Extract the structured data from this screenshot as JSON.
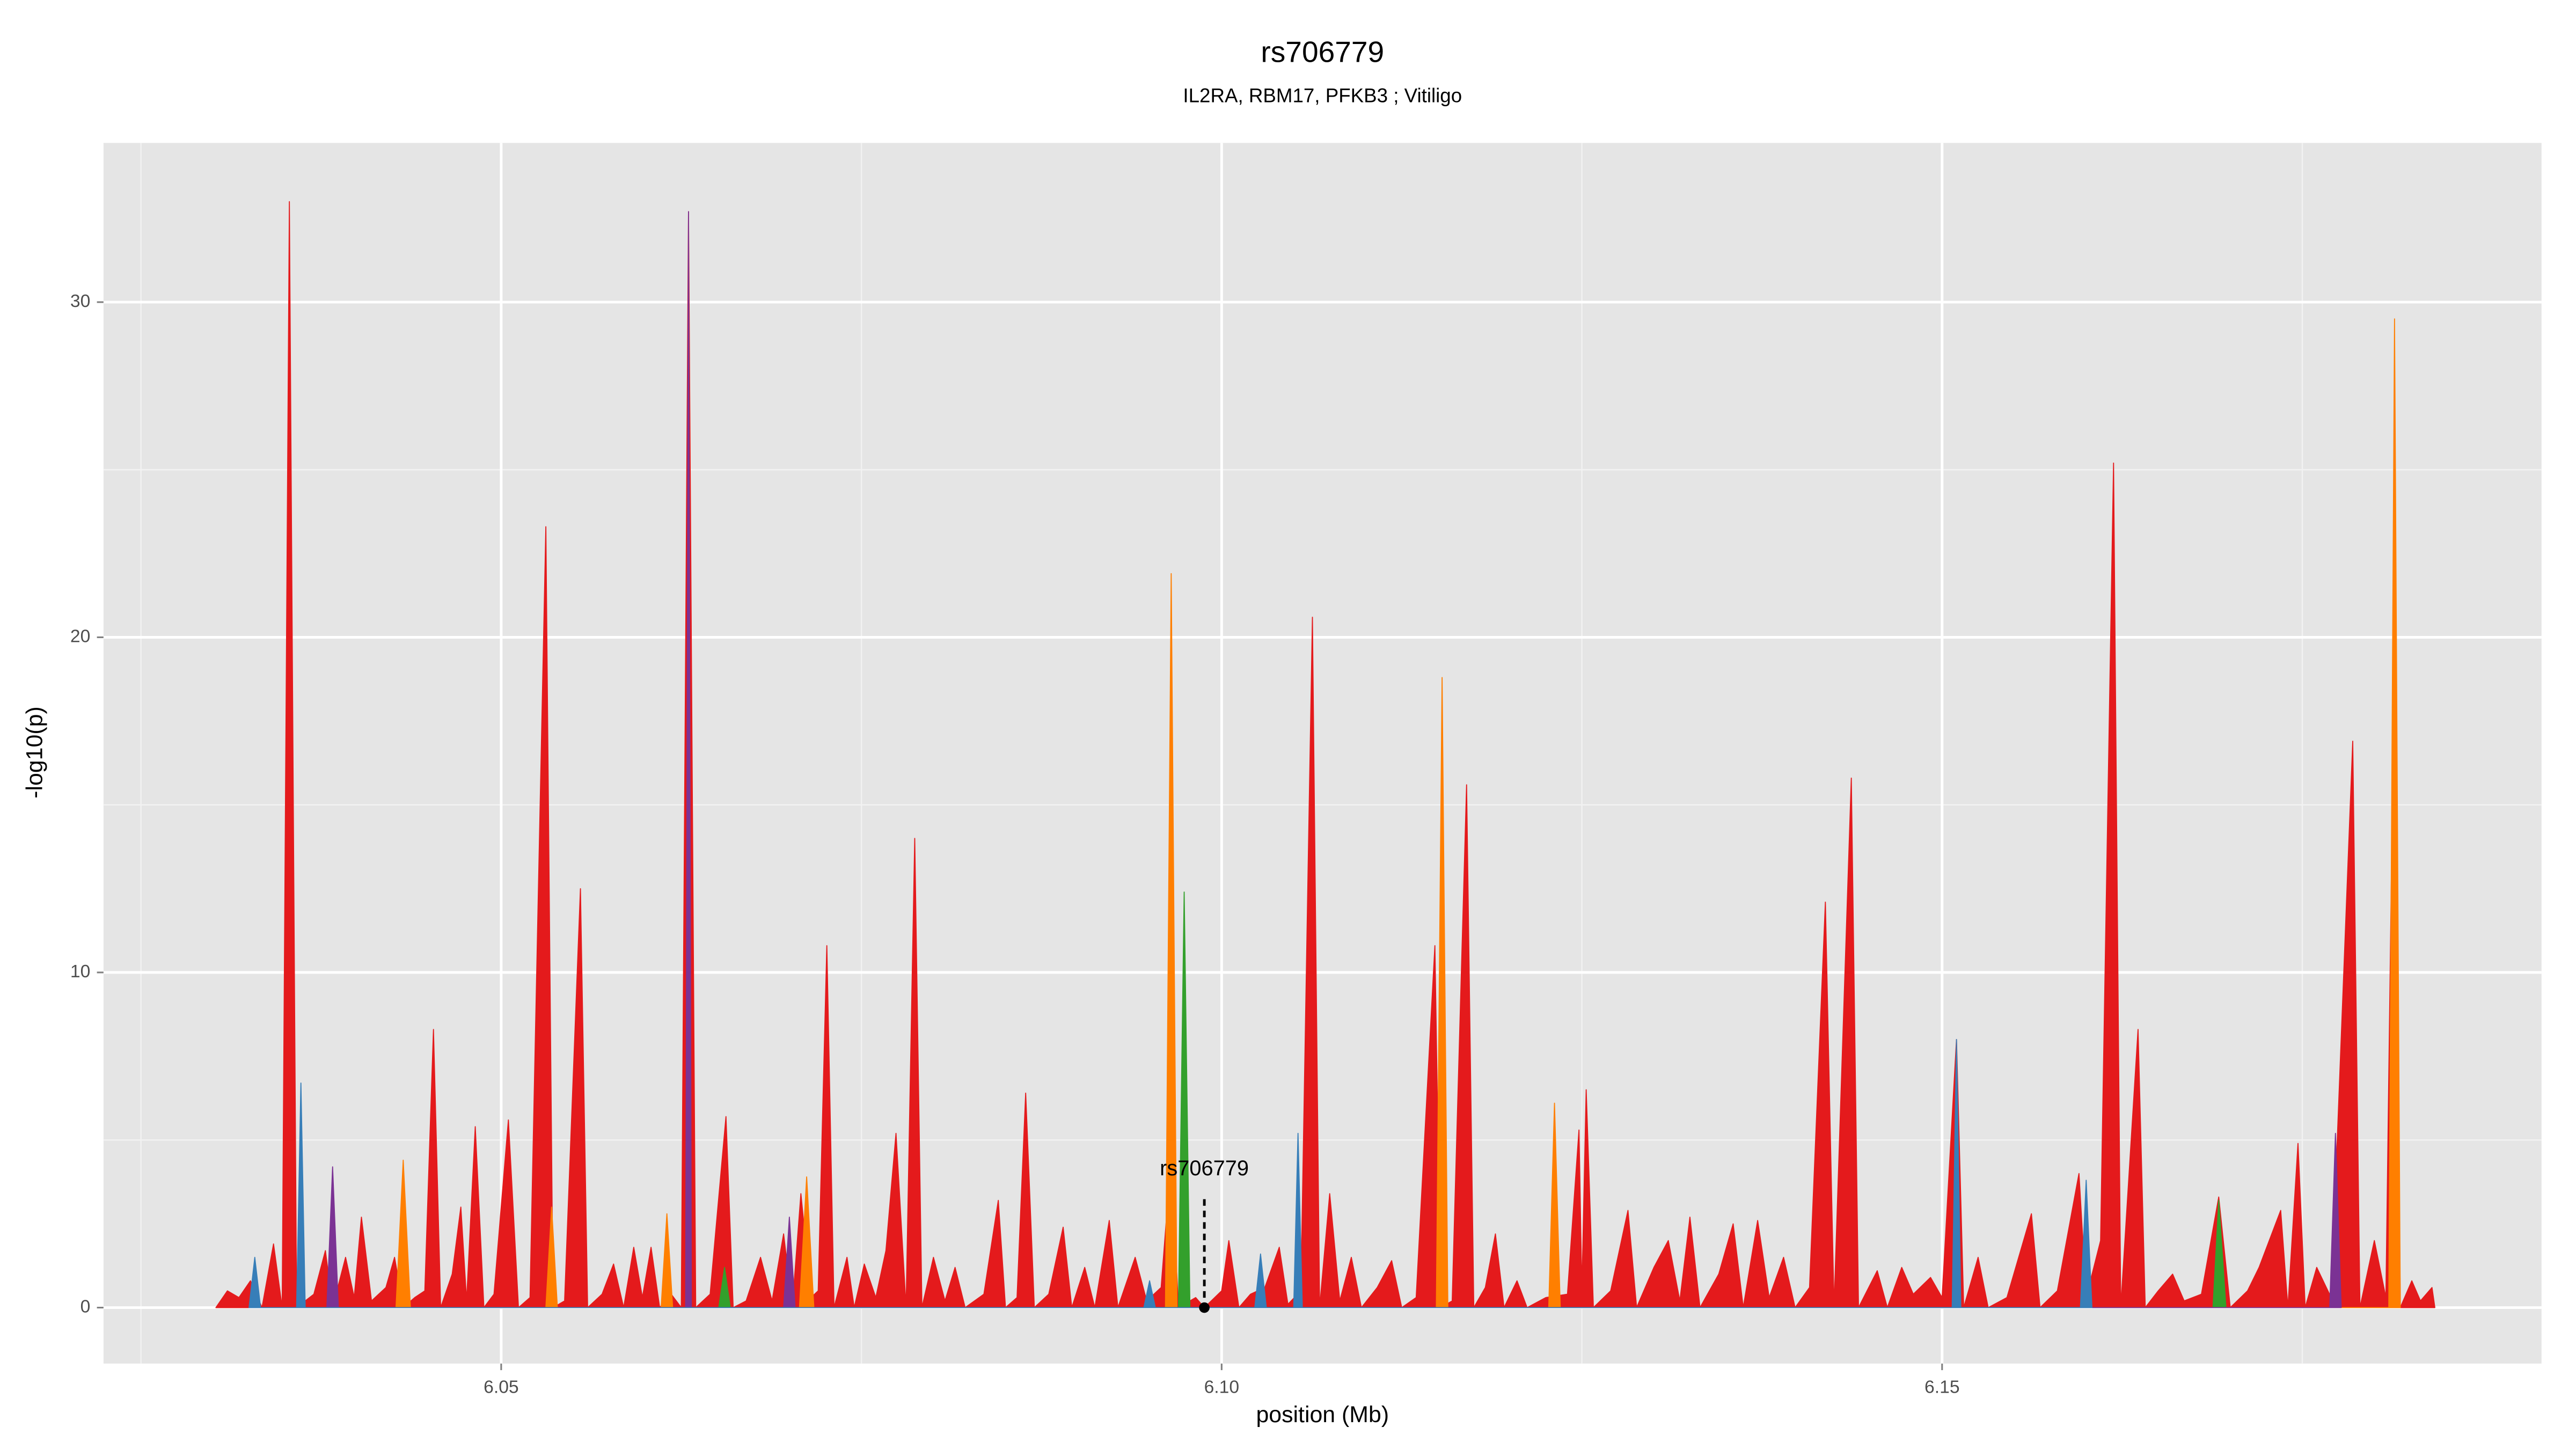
{
  "chart_data": {
    "type": "area",
    "title": "rs706779",
    "subtitle": "IL2RA, RBM17, PFKB3 ; Vitiligo",
    "x_label": "position (Mb)",
    "y_label": "-log10(p)",
    "xlim": [
      6.0224,
      6.1916
    ],
    "ylim": [
      -1.67,
      34.75
    ],
    "xticks": [
      6.05,
      {
        "value": 6.1,
        "label": "6.10"
      },
      6.15
    ],
    "yticks": [
      0,
      10,
      20,
      30
    ],
    "x_minor_ticks": [
      6.025,
      6.075,
      6.125,
      6.175
    ],
    "y_minor_ticks": [
      5,
      15,
      25
    ],
    "grid": true,
    "series": [
      {
        "color": "#e41a1c",
        "x": [
          6.0302,
          6.031,
          6.0318,
          6.0326,
          6.0334,
          6.0342,
          6.0348,
          6.0353,
          6.0358,
          6.037,
          6.0378,
          6.0383,
          6.0392,
          6.0398,
          6.0403,
          6.041,
          6.042,
          6.0426,
          6.0432,
          6.044,
          6.0447,
          6.0453,
          6.0458,
          6.0466,
          6.0472,
          6.0476,
          6.0482,
          6.0488,
          6.0495,
          6.0505,
          6.0512,
          6.052,
          6.0531,
          6.0536,
          6.0544,
          6.0555,
          6.056,
          6.057,
          6.0578,
          6.0585,
          6.0592,
          6.0598,
          6.0604,
          6.061,
          6.0618,
          6.0625,
          6.063,
          6.0635,
          6.0645,
          6.0656,
          6.0661,
          6.067,
          6.068,
          6.0688,
          6.0696,
          6.0702,
          6.0708,
          6.0715,
          6.072,
          6.0726,
          6.0731,
          6.074,
          6.0745,
          6.0752,
          6.076,
          6.0767,
          6.0774,
          6.0781,
          6.0787,
          6.0792,
          6.08,
          6.0808,
          6.0815,
          6.0822,
          6.0835,
          6.0845,
          6.085,
          6.0858,
          6.0864,
          6.087,
          6.088,
          6.089,
          6.0896,
          6.0905,
          6.0912,
          6.0922,
          6.0928,
          6.094,
          6.0948,
          6.0958,
          6.0965,
          6.097,
          6.0982,
          6.0988,
          6.1,
          6.1005,
          6.1012,
          6.102,
          6.103,
          6.104,
          6.1046,
          6.1055,
          6.1063,
          6.1068,
          6.1075,
          6.1082,
          6.109,
          6.1097,
          6.1108,
          6.1118,
          6.1125,
          6.1135,
          6.1148,
          6.1152,
          6.116,
          6.117,
          6.1175,
          6.1183,
          6.119,
          6.1196,
          6.1205,
          6.1212,
          6.1225,
          6.124,
          6.1248,
          6.125,
          6.1253,
          6.1258,
          6.127,
          6.1282,
          6.1288,
          6.13,
          6.131,
          6.1318,
          6.1325,
          6.1332,
          6.1345,
          6.1355,
          6.1362,
          6.1372,
          6.138,
          6.139,
          6.1398,
          6.1408,
          6.1419,
          6.1425,
          6.1437,
          6.1442,
          6.1455,
          6.1462,
          6.1472,
          6.148,
          6.1492,
          6.15,
          6.151,
          6.1515,
          6.1525,
          6.1532,
          6.1545,
          6.1562,
          6.1568,
          6.158,
          6.1595,
          6.16,
          6.161,
          6.1619,
          6.1624,
          6.1636,
          6.1641,
          6.165,
          6.166,
          6.1668,
          6.168,
          6.1692,
          6.17,
          6.1712,
          6.172,
          6.1735,
          6.174,
          6.1747,
          6.1752,
          6.176,
          6.177,
          6.1785,
          6.179,
          6.18,
          6.1808,
          6.1814,
          6.1818,
          6.1826,
          6.1832,
          6.184,
          6.1842
        ],
        "values": [
          0,
          0.5,
          0.3,
          0.8,
          0,
          1.9,
          0,
          33,
          0,
          0.4,
          1.7,
          0,
          1.5,
          0.3,
          2.7,
          0.2,
          0.6,
          1.5,
          0,
          0.3,
          0.5,
          8.3,
          0,
          1,
          3,
          0.2,
          5.4,
          0,
          0.4,
          5.6,
          0,
          0.3,
          23.3,
          0,
          0.2,
          12.5,
          0,
          0.4,
          1.3,
          0,
          1.8,
          0.3,
          1.8,
          0,
          0.4,
          0,
          32.7,
          0,
          0.4,
          5.7,
          0,
          0.2,
          1.5,
          0.2,
          2.2,
          0,
          3.4,
          0.3,
          0.5,
          10.8,
          0,
          1.5,
          0,
          1.3,
          0.3,
          1.7,
          5.2,
          0,
          14,
          0,
          1.5,
          0.2,
          1.2,
          0,
          0.4,
          3.2,
          0,
          0.3,
          6.4,
          0,
          0.4,
          2.4,
          0,
          1.2,
          0,
          2.6,
          0,
          1.5,
          0.2,
          0.6,
          4.5,
          0,
          0.3,
          0,
          0.5,
          2,
          0,
          0.4,
          0.6,
          1.8,
          0.1,
          0.5,
          20.6,
          0,
          3.4,
          0.2,
          1.5,
          0,
          0.6,
          1.4,
          0,
          0.3,
          10.8,
          0,
          0.2,
          15.6,
          0,
          0.6,
          2.2,
          0,
          0.8,
          0,
          0.3,
          0.4,
          5.3,
          0.5,
          6.5,
          0,
          0.5,
          2.9,
          0,
          1.2,
          2,
          0.2,
          2.7,
          0,
          1,
          2.5,
          0,
          2.6,
          0.3,
          1.5,
          0,
          0.6,
          12.1,
          0,
          15.8,
          0,
          1.1,
          0,
          1.2,
          0.4,
          0.9,
          0.3,
          8,
          0,
          1.5,
          0,
          0.3,
          2.8,
          0,
          0.5,
          4,
          0.3,
          2,
          25.2,
          0,
          8.3,
          0,
          0.5,
          1,
          0.2,
          0.4,
          3.3,
          0,
          0.5,
          1.2,
          2.9,
          0,
          4.9,
          0,
          1.2,
          0.3,
          16.9,
          0,
          2,
          0.3,
          20,
          0,
          0.8,
          0.2,
          0.6,
          0
        ]
      },
      {
        "color": "#ff7f00",
        "x": [
          6.0427,
          6.0432,
          6.0437,
          6.0531,
          6.0535,
          6.0539,
          6.0611,
          6.0615,
          6.0619,
          6.0707,
          6.0712,
          6.0717,
          6.0961,
          6.0965,
          6.0969,
          6.1149,
          6.1153,
          6.1157,
          6.1227,
          6.1231,
          6.1235,
          6.181,
          6.1814,
          6.1818
        ],
        "values": [
          0,
          4.4,
          0,
          0,
          3,
          0,
          0,
          2.8,
          0,
          0,
          3.9,
          0,
          0,
          21.9,
          0,
          0,
          18.8,
          0,
          0,
          6.1,
          0,
          0,
          29.5,
          0
        ]
      },
      {
        "color": "#33a02c",
        "x": [
          6.0651,
          6.0655,
          6.0659,
          6.097,
          6.0974,
          6.0978,
          6.1688,
          6.1692,
          6.1697
        ],
        "values": [
          0,
          1.2,
          0,
          0,
          12.4,
          0,
          0,
          3.2,
          0
        ]
      },
      {
        "color": "#7b3294",
        "x": [
          6.0379,
          6.0383,
          6.0387,
          6.0628,
          6.063,
          6.0632,
          6.0696,
          6.07,
          6.0704,
          6.1769,
          6.1773,
          6.1777
        ],
        "values": [
          0,
          4.2,
          0,
          0,
          32.7,
          0,
          0,
          2.7,
          0,
          0,
          5.2,
          0
        ]
      },
      {
        "color": "#377eb8",
        "x": [
          6.0325,
          6.0329,
          6.0333,
          6.0358,
          6.0361,
          6.0364,
          6.0946,
          6.095,
          6.0954,
          6.1023,
          6.1027,
          6.1031,
          6.105,
          6.1053,
          6.1056,
          6.1507,
          6.151,
          6.1513,
          6.1596,
          6.16,
          6.1604
        ],
        "values": [
          0,
          1.5,
          0,
          0,
          6.7,
          0,
          0,
          0.8,
          0,
          0,
          1.6,
          0,
          0,
          5.2,
          0,
          0,
          8,
          0,
          0,
          3.8,
          0
        ]
      }
    ],
    "annotation": {
      "text": "rs706779",
      "x": 6.0988,
      "y": 0
    }
  }
}
